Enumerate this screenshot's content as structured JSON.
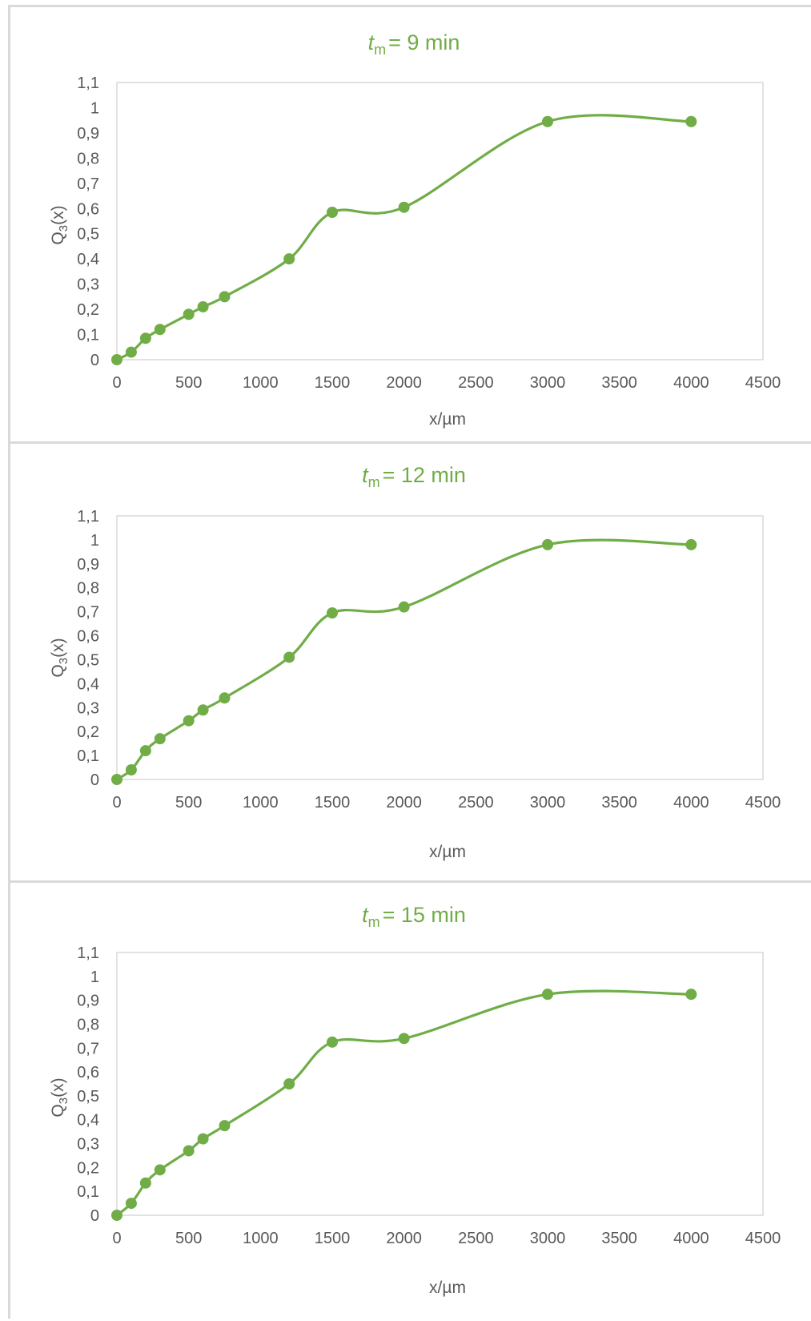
{
  "colors": {
    "series": "#70ad47",
    "plot_border": "#d9d9d9",
    "text": "#595959"
  },
  "chart_data": [
    {
      "type": "scatter",
      "title": {
        "var": "t",
        "sub": "m",
        "rest": "= 9 min"
      },
      "xlabel": "x/µm",
      "ylabel": {
        "main": "Q",
        "sub": "3",
        "rest": "(x)"
      },
      "xlim": [
        0,
        4500
      ],
      "ylim": [
        0,
        1.1
      ],
      "xticks": [
        "0",
        "500",
        "1000",
        "1500",
        "2000",
        "2500",
        "3000",
        "3500",
        "4000",
        "4500"
      ],
      "yticks": [
        "0",
        "0,1",
        "0,2",
        "0,3",
        "0,4",
        "0,5",
        "0,6",
        "0,7",
        "0,8",
        "0,9",
        "1",
        "1,1"
      ],
      "smooth_line": true,
      "grid": false,
      "x": [
        0,
        100,
        200,
        300,
        500,
        600,
        750,
        1200,
        1500,
        2000,
        3000,
        4000
      ],
      "y": [
        0,
        0.03,
        0.085,
        0.12,
        0.18,
        0.21,
        0.25,
        0.4,
        0.585,
        0.605,
        0.945,
        0.945
      ]
    },
    {
      "type": "scatter",
      "title": {
        "var": "t",
        "sub": "m",
        "rest": "= 12 min"
      },
      "xlabel": "x/µm",
      "ylabel": {
        "main": "Q",
        "sub": "3",
        "rest": "(x)"
      },
      "xlim": [
        0,
        4500
      ],
      "ylim": [
        0,
        1.1
      ],
      "xticks": [
        "0",
        "500",
        "1000",
        "1500",
        "2000",
        "2500",
        "3000",
        "3500",
        "4000",
        "4500"
      ],
      "yticks": [
        "0",
        "0,1",
        "0,2",
        "0,3",
        "0,4",
        "0,5",
        "0,6",
        "0,7",
        "0,8",
        "0,9",
        "1",
        "1,1"
      ],
      "smooth_line": true,
      "grid": false,
      "x": [
        0,
        100,
        200,
        300,
        500,
        600,
        750,
        1200,
        1500,
        2000,
        3000,
        4000
      ],
      "y": [
        0,
        0.04,
        0.12,
        0.17,
        0.245,
        0.29,
        0.34,
        0.51,
        0.695,
        0.72,
        0.98,
        0.98
      ]
    },
    {
      "type": "scatter",
      "title": {
        "var": "t",
        "sub": "m",
        "rest": "= 15 min"
      },
      "xlabel": "x/µm",
      "ylabel": {
        "main": "Q",
        "sub": "3",
        "rest": "(x)"
      },
      "xlim": [
        0,
        4500
      ],
      "ylim": [
        0,
        1.1
      ],
      "xticks": [
        "0",
        "500",
        "1000",
        "1500",
        "2000",
        "2500",
        "3000",
        "3500",
        "4000",
        "4500"
      ],
      "yticks": [
        "0",
        "0,1",
        "0,2",
        "0,3",
        "0,4",
        "0,5",
        "0,6",
        "0,7",
        "0,8",
        "0,9",
        "1",
        "1,1"
      ],
      "smooth_line": true,
      "grid": false,
      "x": [
        0,
        100,
        200,
        300,
        500,
        600,
        750,
        1200,
        1500,
        2000,
        3000,
        4000
      ],
      "y": [
        0,
        0.05,
        0.135,
        0.19,
        0.27,
        0.32,
        0.375,
        0.55,
        0.725,
        0.74,
        0.925,
        0.925
      ]
    }
  ]
}
